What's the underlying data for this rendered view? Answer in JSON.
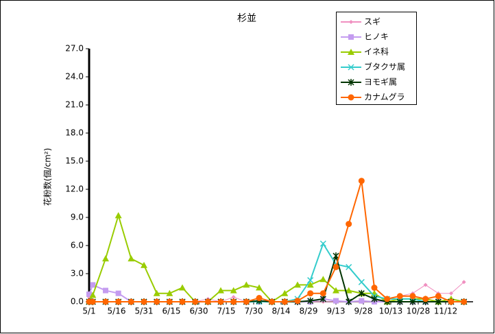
{
  "chart_data": {
    "type": "line",
    "title": "杉並",
    "y_label": "花粉数(個/cm²)",
    "x": [
      0,
      2,
      9,
      16,
      23,
      30,
      37,
      44,
      51,
      58,
      65,
      72,
      79,
      86,
      93,
      100,
      107,
      114,
      121,
      128,
      135,
      142,
      149,
      156,
      163,
      170,
      177,
      184,
      191,
      198,
      205
    ],
    "xlim": [
      0,
      210
    ],
    "xticks": [
      {
        "value": 0,
        "label": "5/1"
      },
      {
        "value": 15,
        "label": "5/16"
      },
      {
        "value": 30,
        "label": "5/31"
      },
      {
        "value": 45,
        "label": "6/15"
      },
      {
        "value": 60,
        "label": "6/30"
      },
      {
        "value": 75,
        "label": "7/15"
      },
      {
        "value": 90,
        "label": "7/30"
      },
      {
        "value": 105,
        "label": "8/14"
      },
      {
        "value": 120,
        "label": "8/29"
      },
      {
        "value": 135,
        "label": "9/13"
      },
      {
        "value": 150,
        "label": "9/28"
      },
      {
        "value": 165,
        "label": "10/13"
      },
      {
        "value": 180,
        "label": "10/28"
      },
      {
        "value": 195,
        "label": "11/12"
      }
    ],
    "ylim": [
      0,
      27
    ],
    "yticks": [
      {
        "value": 0,
        "label": "0.0"
      },
      {
        "value": 3,
        "label": "3.0"
      },
      {
        "value": 6,
        "label": "6.0"
      },
      {
        "value": 9,
        "label": "9.0"
      },
      {
        "value": 12,
        "label": "12.0"
      },
      {
        "value": 15,
        "label": "15.0"
      },
      {
        "value": 18,
        "label": "18.0"
      },
      {
        "value": 21,
        "label": "21.0"
      },
      {
        "value": 24,
        "label": "24.0"
      },
      {
        "value": 27,
        "label": "27.0"
      }
    ],
    "legend": "upper-right",
    "series": [
      {
        "name": "スギ",
        "color": "#f08fc0",
        "marker": "diamond",
        "values": [
          0.5,
          0,
          0,
          0,
          0,
          0,
          0,
          0,
          0,
          0,
          0.3,
          0,
          0.5,
          0,
          0,
          0,
          0,
          0,
          0,
          0,
          0,
          0,
          0,
          0,
          0.3,
          0.6,
          0.9,
          1.8,
          0.9,
          0.9,
          2.1
        ]
      },
      {
        "name": "ヒノキ",
        "color": "#c49cf0",
        "marker": "square",
        "values": [
          0.8,
          1.8,
          1.2,
          0.9,
          0,
          0,
          0,
          0,
          0,
          0,
          0,
          0,
          0,
          0,
          0,
          0,
          0,
          0,
          0,
          0.3,
          0.1,
          0,
          0.1,
          0,
          0,
          0,
          0,
          0,
          0,
          0,
          0
        ]
      },
      {
        "name": "イネ科",
        "color": "#99cc00",
        "marker": "triangle",
        "values": [
          0,
          0.7,
          4.6,
          9.2,
          4.6,
          3.9,
          0.9,
          0.9,
          1.5,
          0,
          0,
          1.2,
          1.2,
          1.8,
          1.5,
          0,
          0.9,
          1.8,
          1.8,
          2.4,
          1.2,
          1.2,
          0.9,
          0.9,
          0,
          0.3,
          0.3,
          0.3,
          0,
          0.3,
          0
        ]
      },
      {
        "name": "ブタクサ属",
        "color": "#33cccc",
        "marker": "x",
        "values": [
          0,
          0,
          0,
          0,
          0,
          0,
          0,
          0,
          0,
          0,
          0,
          0,
          0,
          0,
          0,
          0,
          0,
          0.3,
          2.3,
          6.2,
          4.0,
          3.7,
          2.1,
          0.6,
          0.3,
          0.3,
          0.3,
          0,
          0,
          0,
          0
        ]
      },
      {
        "name": "ヨモギ属",
        "color": "#003300",
        "marker": "star",
        "values": [
          0,
          0,
          0,
          0,
          0,
          0,
          0,
          0,
          0,
          0,
          0,
          0,
          0,
          0,
          0.1,
          0,
          0,
          0,
          0.1,
          0.3,
          4.9,
          0,
          0.9,
          0.3,
          0,
          0,
          0,
          0,
          0,
          0,
          0
        ]
      },
      {
        "name": "カナムグラ",
        "color": "#ff6600",
        "marker": "circle",
        "values": [
          0,
          0,
          0,
          0,
          0,
          0,
          0,
          0,
          0,
          0,
          0,
          0,
          0,
          0,
          0.4,
          0,
          0,
          0.1,
          0.9,
          0.9,
          3.7,
          8.3,
          12.9,
          1.5,
          0.3,
          0.6,
          0.6,
          0.3,
          0.6,
          0,
          0
        ]
      }
    ]
  }
}
